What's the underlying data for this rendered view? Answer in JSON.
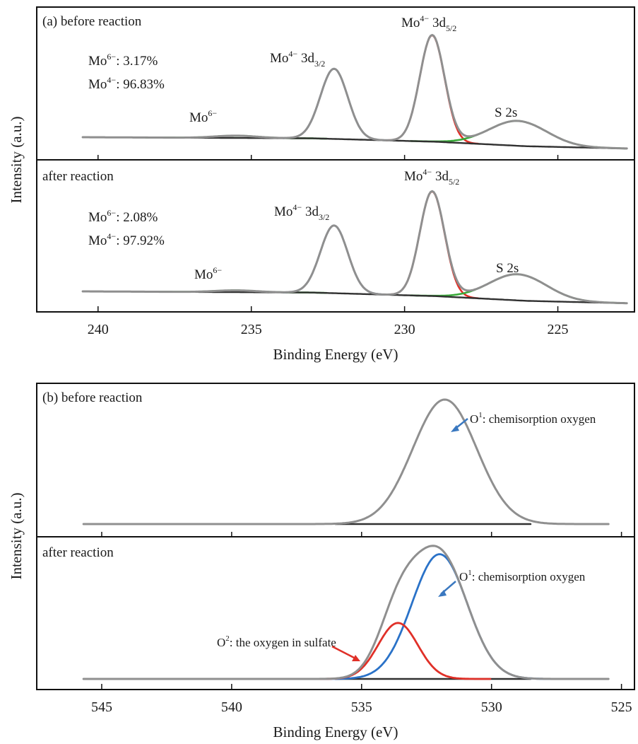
{
  "colors": {
    "envelope": "#8f8f8f",
    "background": "#303030",
    "Mo4+ 3d3/2": "#2a72c8",
    "Mo4+ 3d5/2": "#e03028",
    "S 2s": "#3aaa3a",
    "Mo6+": "#3aaa3a",
    "O1": "#2a72c8",
    "O2": "#e03028",
    "arrow_O1": "#3a78c0",
    "arrow_O2": "#e03028"
  },
  "chart_data": [
    {
      "type": "line",
      "figure": "(a)",
      "xlabel": "Binding Energy (eV)",
      "ylabel": "Intensity (a.u.)",
      "xlim": [
        242,
        222.5
      ],
      "x_reversed": true,
      "x_ticks": [
        240,
        235,
        230,
        225
      ],
      "y_ticks_shown": false,
      "grid": false,
      "panels": [
        {
          "label": "(a) before reaction",
          "peaks": [
            {
              "name": "Mo⁶⁻",
              "center": 235.5,
              "height": 0.02,
              "fwhm": 1.6,
              "color": "green"
            },
            {
              "name": "Mo⁴⁻ 3d3/2",
              "center": 232.3,
              "height": 0.62,
              "fwhm": 1.05,
              "color": "blue"
            },
            {
              "name": "Mo⁴⁻ 3d5/2",
              "center": 229.1,
              "height": 0.94,
              "fwhm": 0.95,
              "color": "red"
            },
            {
              "name": "S 2s",
              "center": 226.3,
              "height": 0.22,
              "fwhm": 2.2,
              "color": "green"
            }
          ],
          "background_points": [
            [
              242,
              0.0
            ],
            [
              240.5,
              0.0
            ],
            [
              233,
              -0.01
            ],
            [
              229,
              -0.04
            ],
            [
              226,
              -0.08
            ],
            [
              222.7,
              -0.1
            ]
          ],
          "annotations": {
            "percent_mo6": "3.17%",
            "percent_mo4": "96.83%",
            "peak_mo6": "Mo",
            "peak_3d32": "Mo",
            "peak_3d52": "Mo",
            "peak_s2s": "S 2s"
          }
        },
        {
          "label": "after reaction",
          "peaks": [
            {
              "name": "Mo⁶⁻",
              "center": 235.5,
              "height": 0.015,
              "fwhm": 1.6,
              "color": "green"
            },
            {
              "name": "Mo⁴⁻ 3d3/2",
              "center": 232.3,
              "height": 0.57,
              "fwhm": 1.05,
              "color": "blue"
            },
            {
              "name": "Mo⁴⁻ 3d5/2",
              "center": 229.1,
              "height": 0.88,
              "fwhm": 0.95,
              "color": "red"
            },
            {
              "name": "S 2s",
              "center": 226.3,
              "height": 0.22,
              "fwhm": 2.2,
              "color": "green"
            }
          ],
          "background_points": [
            [
              242,
              0.0
            ],
            [
              240.5,
              0.0
            ],
            [
              233,
              -0.01
            ],
            [
              229,
              -0.04
            ],
            [
              226,
              -0.08
            ],
            [
              222.7,
              -0.1
            ]
          ],
          "annotations": {
            "percent_mo6": "2.08%",
            "percent_mo4": "97.92%",
            "peak_mo6": "Mo",
            "peak_3d32": "Mo",
            "peak_3d52": "Mo",
            "peak_s2s": "S 2s"
          }
        }
      ]
    },
    {
      "type": "line",
      "figure": "(b)",
      "xlabel": "Binding Energy (eV)",
      "ylabel": "Intensity (a.u.)",
      "xlim": [
        547.5,
        524.5
      ],
      "x_reversed": true,
      "x_ticks": [
        545,
        540,
        535,
        530,
        525
      ],
      "y_ticks_shown": false,
      "grid": false,
      "panels": [
        {
          "label": "(b) before reaction",
          "peaks": [
            {
              "name": "O¹",
              "center": 531.8,
              "height": 1.0,
              "fwhm": 2.9,
              "color": "gray"
            }
          ],
          "background_points": [
            [
              545.7,
              0.0
            ],
            [
              525.5,
              0.0
            ]
          ],
          "annotations": {
            "O1_label": ": chemisorption oxygen"
          }
        },
        {
          "label": "after reaction",
          "peaks": [
            {
              "name": "O¹",
              "center": 532.0,
              "height": 0.98,
              "fwhm": 2.5,
              "color": "blue"
            },
            {
              "name": "O²",
              "center": 533.6,
              "height": 0.44,
              "fwhm": 1.8,
              "color": "red"
            }
          ],
          "background_points": [
            [
              545.7,
              0.0
            ],
            [
              525.5,
              0.0
            ]
          ],
          "annotations": {
            "O1_label": ": chemisorption oxygen",
            "O2_label": ": the oxygen in sulfate"
          }
        }
      ]
    }
  ]
}
